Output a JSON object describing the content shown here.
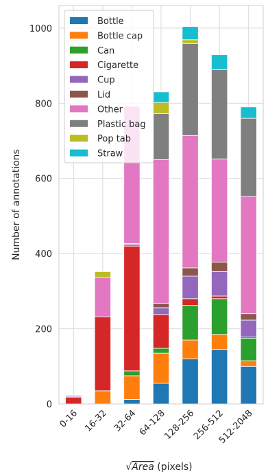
{
  "chart_data": {
    "type": "bar",
    "stacked": true,
    "categories": [
      "0-16",
      "16-32",
      "32-64",
      "64-128",
      "128-256",
      "256-512",
      "512-2048"
    ],
    "ylabel": "Number of annotations",
    "xlabel_prefix": "√",
    "xlabel_var": "Area",
    "xlabel_suffix": " (pixels)",
    "ylim": [
      0,
      1060
    ],
    "yticks": [
      0,
      200,
      400,
      600,
      800,
      1000
    ],
    "grid": true,
    "legend_position": "top-left",
    "series": [
      {
        "name": "Bottle",
        "color": "#1f77b4",
        "values": [
          0,
          0,
          12,
          55,
          120,
          145,
          100
        ]
      },
      {
        "name": "Bottle cap",
        "color": "#ff7f0e",
        "values": [
          0,
          35,
          63,
          80,
          50,
          40,
          15
        ]
      },
      {
        "name": "Can",
        "color": "#2ca02c",
        "values": [
          0,
          0,
          13,
          13,
          92,
          95,
          60
        ]
      },
      {
        "name": "Cigarette",
        "color": "#d62728",
        "values": [
          18,
          197,
          332,
          90,
          18,
          7,
          3
        ]
      },
      {
        "name": "Cup",
        "color": "#9467bd",
        "values": [
          2,
          0,
          5,
          18,
          60,
          65,
          45
        ]
      },
      {
        "name": "Lid",
        "color": "#8c564b",
        "values": [
          0,
          0,
          2,
          12,
          22,
          25,
          17
        ]
      },
      {
        "name": "Other",
        "color": "#e377c2",
        "values": [
          3,
          105,
          365,
          382,
          352,
          275,
          312
        ]
      },
      {
        "name": "Plastic bag",
        "color": "#7f7f7f",
        "values": [
          0,
          0,
          0,
          122,
          245,
          237,
          208
        ]
      },
      {
        "name": "Pop tab",
        "color": "#bcbd22",
        "values": [
          0,
          15,
          0,
          30,
          10,
          0,
          0
        ]
      },
      {
        "name": "Straw",
        "color": "#17becf",
        "values": [
          0,
          0,
          0,
          28,
          35,
          40,
          30
        ]
      }
    ]
  }
}
